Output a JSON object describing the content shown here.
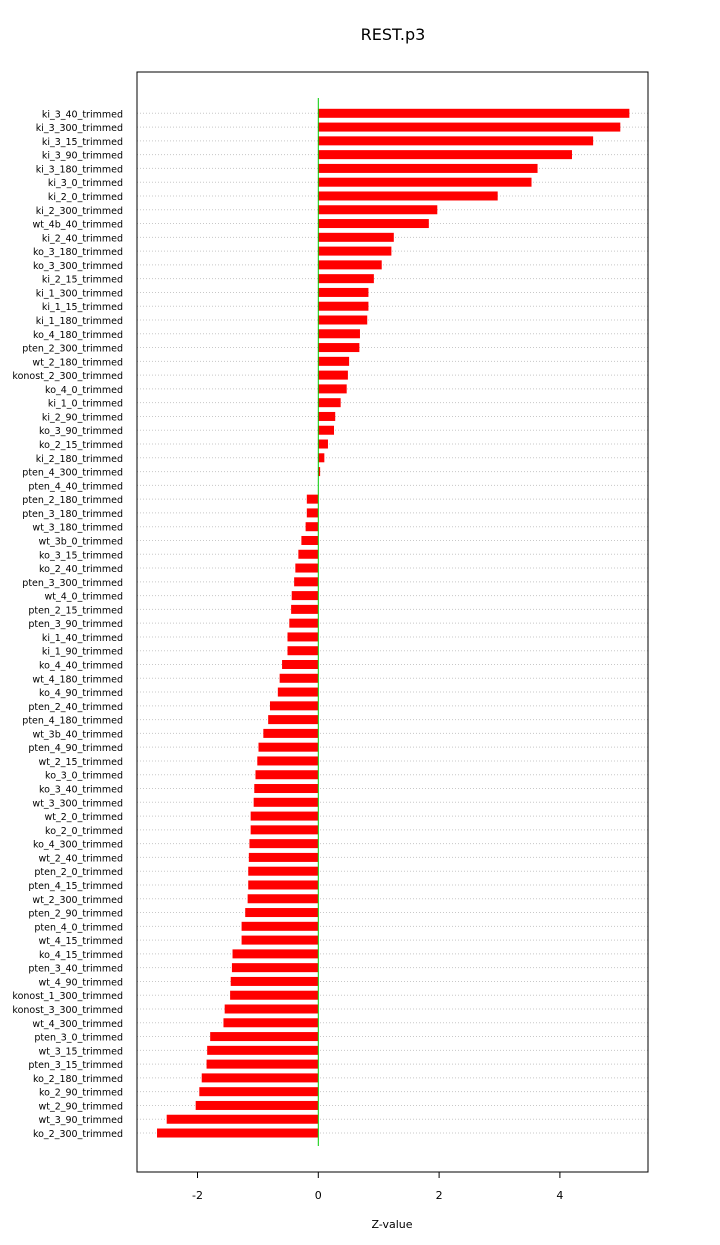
{
  "chart_data": {
    "type": "bar",
    "orientation": "horizontal",
    "title": "REST.p3",
    "xlabel": "Z-value",
    "ylabel": "",
    "xlim": [
      -3.0,
      5.5
    ],
    "xticks": [
      -2,
      0,
      2,
      4
    ],
    "grid": "horizontal dotted lines per category",
    "colors": {
      "bar": "#ff0000",
      "zero_line": "#00cc00"
    },
    "categories": [
      "ki_3_40_trimmed",
      "ki_3_300_trimmed",
      "ki_3_15_trimmed",
      "ki_3_90_trimmed",
      "ki_3_180_trimmed",
      "ki_3_0_trimmed",
      "ki_2_0_trimmed",
      "ki_2_300_trimmed",
      "wt_4b_40_trimmed",
      "ki_2_40_trimmed",
      "ko_3_180_trimmed",
      "ko_3_300_trimmed",
      "ki_2_15_trimmed",
      "ki_1_300_trimmed",
      "ki_1_15_trimmed",
      "ki_1_180_trimmed",
      "ko_4_180_trimmed",
      "pten_2_300_trimmed",
      "wt_2_180_trimmed",
      "konost_2_300_trimmed",
      "ko_4_0_trimmed",
      "ki_1_0_trimmed",
      "ki_2_90_trimmed",
      "ko_3_90_trimmed",
      "ko_2_15_trimmed",
      "ki_2_180_trimmed",
      "pten_4_300_trimmed",
      "pten_4_40_trimmed",
      "pten_2_180_trimmed",
      "pten_3_180_trimmed",
      "wt_3_180_trimmed",
      "wt_3b_0_trimmed",
      "ko_3_15_trimmed",
      "ko_2_40_trimmed",
      "pten_3_300_trimmed",
      "wt_4_0_trimmed",
      "pten_2_15_trimmed",
      "pten_3_90_trimmed",
      "ki_1_40_trimmed",
      "ki_1_90_trimmed",
      "ko_4_40_trimmed",
      "wt_4_180_trimmed",
      "ko_4_90_trimmed",
      "pten_2_40_trimmed",
      "pten_4_180_trimmed",
      "wt_3b_40_trimmed",
      "pten_4_90_trimmed",
      "wt_2_15_trimmed",
      "ko_3_0_trimmed",
      "ko_3_40_trimmed",
      "wt_3_300_trimmed",
      "wt_2_0_trimmed",
      "ko_2_0_trimmed",
      "ko_4_300_trimmed",
      "wt_2_40_trimmed",
      "pten_2_0_trimmed",
      "pten_4_15_trimmed",
      "wt_2_300_trimmed",
      "pten_2_90_trimmed",
      "pten_4_0_trimmed",
      "wt_4_15_trimmed",
      "ko_4_15_trimmed",
      "pten_3_40_trimmed",
      "wt_4_90_trimmed",
      "konost_1_300_trimmed",
      "konost_3_300_trimmed",
      "wt_4_300_trimmed",
      "pten_3_0_trimmed",
      "wt_3_15_trimmed",
      "pten_3_15_trimmed",
      "ko_2_180_trimmed",
      "ko_2_90_trimmed",
      "wt_2_90_trimmed",
      "wt_3_90_trimmed",
      "ko_2_300_trimmed"
    ],
    "values": [
      5.15,
      5.0,
      4.55,
      4.2,
      3.63,
      3.53,
      2.97,
      1.97,
      1.83,
      1.25,
      1.21,
      1.05,
      0.92,
      0.83,
      0.83,
      0.81,
      0.69,
      0.68,
      0.51,
      0.49,
      0.47,
      0.37,
      0.28,
      0.26,
      0.16,
      0.1,
      0.03,
      0.0,
      -0.19,
      -0.19,
      -0.21,
      -0.28,
      -0.33,
      -0.38,
      -0.4,
      -0.44,
      -0.45,
      -0.48,
      -0.51,
      -0.51,
      -0.6,
      -0.64,
      -0.67,
      -0.8,
      -0.83,
      -0.91,
      -0.99,
      -1.01,
      -1.04,
      -1.06,
      -1.07,
      -1.12,
      -1.12,
      -1.14,
      -1.15,
      -1.16,
      -1.16,
      -1.17,
      -1.21,
      -1.27,
      -1.27,
      -1.42,
      -1.43,
      -1.45,
      -1.46,
      -1.55,
      -1.57,
      -1.79,
      -1.84,
      -1.85,
      -1.93,
      -1.97,
      -2.03,
      -2.51,
      -2.67
    ]
  }
}
